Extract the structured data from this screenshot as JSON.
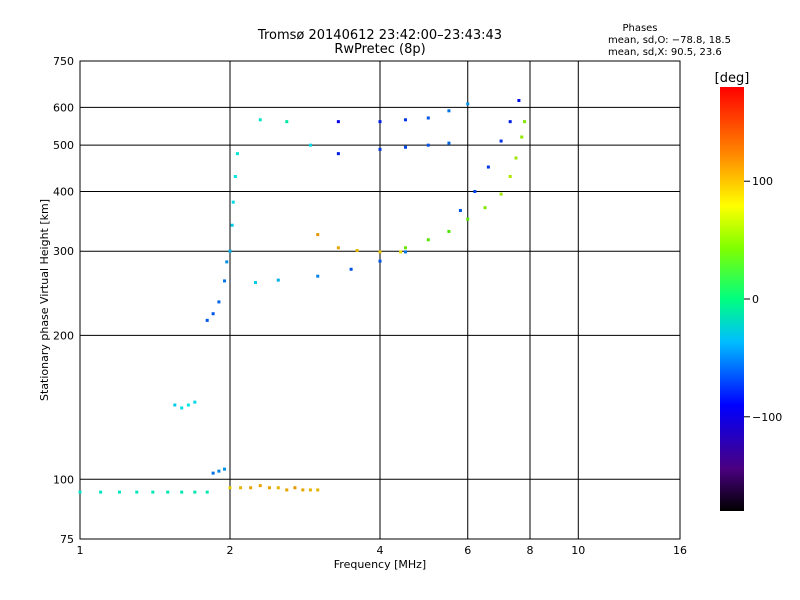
{
  "chart_data": {
    "type": "scatter",
    "title": "Tromsø 20140612 23:42:00–23:43:43",
    "subtitle": "RwPretec (8p)",
    "xlabel": "Frequency [MHz]",
    "ylabel": "Stationary phase Virtual Height [km]",
    "x_scale": "log",
    "y_scale": "log",
    "xlim": [
      1,
      16
    ],
    "ylim": [
      75,
      750
    ],
    "x_ticks": [
      1,
      2,
      4,
      6,
      8,
      10,
      16
    ],
    "x_tick_labels": [
      "1",
      "2",
      "4",
      "6",
      "8",
      "10",
      "16"
    ],
    "y_ticks": [
      75,
      100,
      200,
      300,
      400,
      500,
      600,
      750
    ],
    "y_tick_labels": [
      "75",
      "100",
      "200",
      "300",
      "400",
      "500",
      "600",
      "750"
    ],
    "grid": true,
    "stats": {
      "heading": "Phases",
      "line_o": "mean, sd,O: −78.8, 18.5",
      "line_x": "mean, sd,X:  90.5, 23.6"
    },
    "colorbar": {
      "label": "[deg]",
      "ticks": [
        "100",
        "0",
        "−100"
      ],
      "tick_values": [
        100,
        0,
        -100
      ],
      "range": [
        -180,
        180
      ]
    },
    "series": [
      {
        "points": [
          [
            1.0,
            94,
            -40
          ],
          [
            1.1,
            94,
            -40
          ],
          [
            1.2,
            94,
            -38
          ],
          [
            1.3,
            94,
            -36
          ],
          [
            1.4,
            94,
            -35
          ],
          [
            1.5,
            94,
            -35
          ],
          [
            1.6,
            94,
            -34
          ],
          [
            1.7,
            94,
            -33
          ],
          [
            1.8,
            94,
            -33
          ]
        ]
      },
      {
        "points": [
          [
            1.85,
            103,
            -90
          ],
          [
            1.9,
            104,
            -85
          ],
          [
            1.95,
            105,
            -80
          ]
        ]
      },
      {
        "points": [
          [
            2.0,
            96,
            110
          ],
          [
            2.1,
            96,
            120
          ],
          [
            2.2,
            96,
            125
          ],
          [
            2.3,
            97,
            125
          ],
          [
            2.4,
            96,
            125
          ],
          [
            2.5,
            96,
            120
          ],
          [
            2.6,
            95,
            125
          ],
          [
            2.7,
            96,
            130
          ],
          [
            2.8,
            95,
            125
          ],
          [
            2.9,
            95,
            120
          ],
          [
            3.0,
            95,
            120
          ]
        ]
      },
      {
        "points": [
          [
            1.55,
            143,
            -60
          ],
          [
            1.6,
            141,
            -55
          ],
          [
            1.65,
            143,
            -50
          ],
          [
            1.7,
            145,
            -55
          ]
        ]
      },
      {
        "points": [
          [
            1.8,
            215,
            -100
          ],
          [
            1.85,
            222,
            -100
          ],
          [
            1.9,
            235,
            -95
          ],
          [
            1.95,
            260,
            -90
          ],
          [
            1.97,
            285,
            -80
          ],
          [
            2.0,
            300,
            -70
          ],
          [
            2.02,
            340,
            -60
          ],
          [
            2.03,
            380,
            -55
          ],
          [
            2.05,
            430,
            -50
          ],
          [
            2.07,
            480,
            -45
          ]
        ]
      },
      {
        "points": [
          [
            2.25,
            258,
            -60
          ],
          [
            2.5,
            261,
            -70
          ],
          [
            3.0,
            266,
            -85
          ],
          [
            3.5,
            275,
            -100
          ],
          [
            4.0,
            286,
            -100
          ],
          [
            4.5,
            299,
            -90
          ]
        ]
      },
      {
        "points": [
          [
            3.0,
            325,
            130
          ],
          [
            3.3,
            305,
            125
          ],
          [
            3.6,
            301,
            120
          ],
          [
            4.0,
            299,
            115
          ],
          [
            4.4,
            299,
            105
          ]
        ]
      },
      {
        "points": [
          [
            4.5,
            305,
            60
          ],
          [
            5.0,
            317,
            55
          ],
          [
            5.5,
            330,
            50
          ],
          [
            6.0,
            350,
            55
          ],
          [
            6.5,
            370,
            70
          ],
          [
            7.0,
            395,
            80
          ],
          [
            7.3,
            430,
            85
          ],
          [
            7.5,
            470,
            80
          ],
          [
            7.7,
            520,
            75
          ],
          [
            7.8,
            560,
            70
          ]
        ]
      },
      {
        "points": [
          [
            5.8,
            365,
            -100
          ],
          [
            6.2,
            400,
            -105
          ],
          [
            6.6,
            450,
            -110
          ],
          [
            7.0,
            510,
            -115
          ],
          [
            7.3,
            560,
            -120
          ],
          [
            7.6,
            620,
            -125
          ]
        ]
      },
      {
        "points": [
          [
            3.3,
            480,
            -120
          ],
          [
            4.0,
            490,
            -110
          ],
          [
            4.5,
            495,
            -105
          ],
          [
            5.0,
            500,
            -100
          ],
          [
            5.5,
            505,
            -95
          ]
        ]
      },
      {
        "points": [
          [
            3.3,
            560,
            -130
          ],
          [
            4.0,
            560,
            -120
          ],
          [
            4.5,
            565,
            -110
          ],
          [
            5.0,
            570,
            -100
          ],
          [
            5.5,
            590,
            -90
          ],
          [
            6.0,
            610,
            -80
          ]
        ]
      },
      {
        "points": [
          [
            2.3,
            565,
            -40
          ],
          [
            2.6,
            560,
            -30
          ],
          [
            2.9,
            500,
            -55
          ]
        ]
      }
    ]
  }
}
